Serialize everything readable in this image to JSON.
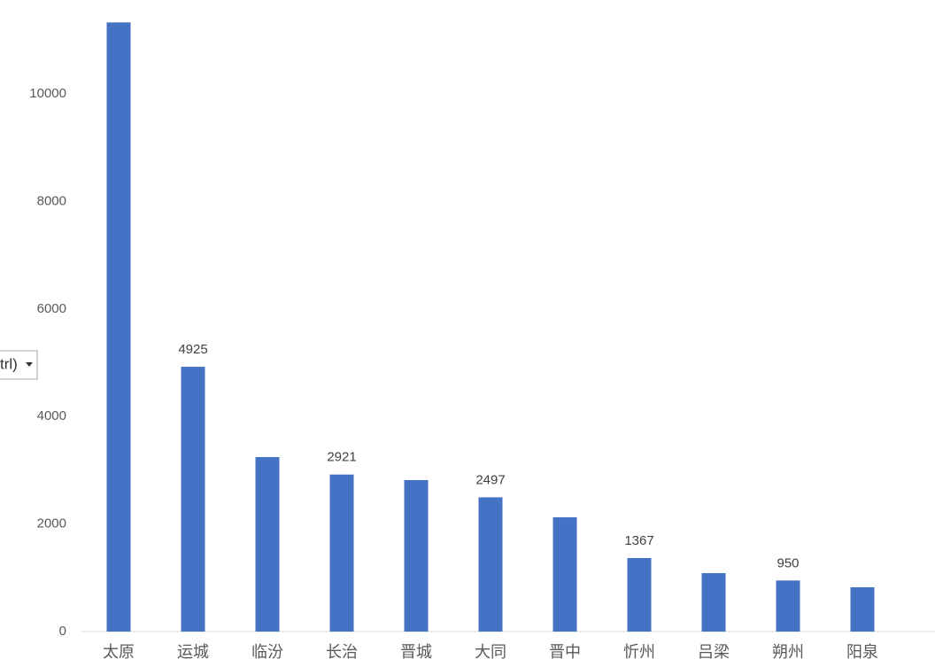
{
  "filter_button": {
    "label": "trl)"
  },
  "chart_data": {
    "type": "bar",
    "categories": [
      "太原",
      "运城",
      "临汾",
      "长治",
      "晋城",
      "大同",
      "晋中",
      "忻州",
      "吕梁",
      "朔州",
      "阳泉"
    ],
    "values": [
      11330,
      4925,
      3245,
      2921,
      2817,
      2497,
      2125,
      1367,
      1087,
      950,
      824
    ],
    "value_labels": [
      null,
      "4925",
      null,
      "2921",
      null,
      "2497",
      null,
      "1367",
      null,
      "950",
      null
    ],
    "color": "#4472c4",
    "ylim": [
      0,
      11500
    ],
    "yticks": [
      0,
      2000,
      4000,
      6000,
      8000,
      10000
    ],
    "grid": false
  }
}
